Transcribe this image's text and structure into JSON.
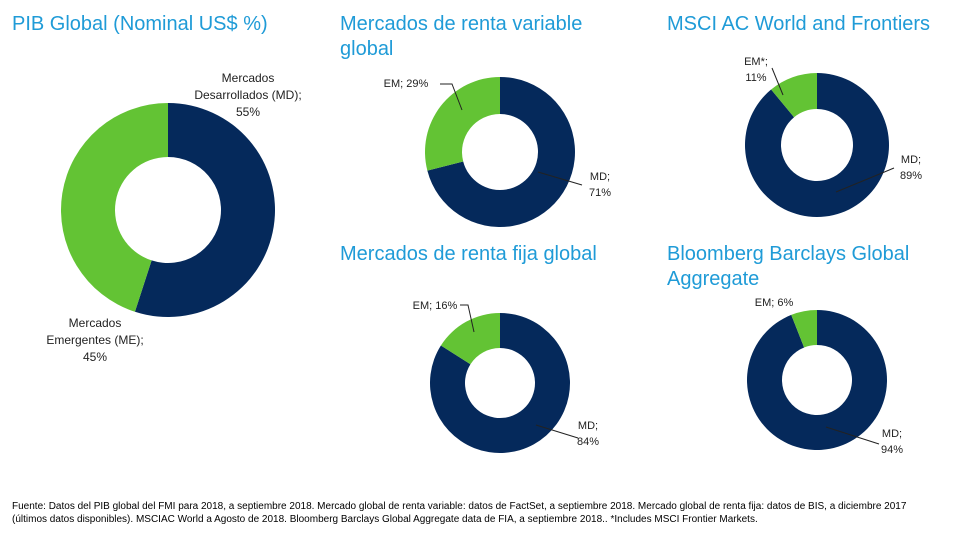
{
  "colors": {
    "md": "#05295b",
    "em": "#63c334",
    "title": "#1f9bd7"
  },
  "chart_data": [
    {
      "type": "pie",
      "variant": "donut",
      "title": "PIB Global (Nominal US$ %)",
      "slices": [
        {
          "key": "md",
          "label_lines": [
            "Mercados",
            "Desarrollados (MD);",
            "55%"
          ],
          "value": 55
        },
        {
          "key": "em",
          "label_lines": [
            "Mercados",
            "Emergentes (ME);",
            "45%"
          ],
          "value": 45
        }
      ]
    },
    {
      "type": "pie",
      "variant": "donut",
      "title_lines": [
        "Mercados de renta variable",
        "global"
      ],
      "slices": [
        {
          "key": "md",
          "label_lines": [
            "MD;",
            "71%"
          ],
          "value": 71
        },
        {
          "key": "em",
          "label_lines": [
            "EM; 29%"
          ],
          "value": 29
        }
      ]
    },
    {
      "type": "pie",
      "variant": "donut",
      "title": "MSCI AC World and Frontiers",
      "slices": [
        {
          "key": "md",
          "label_lines": [
            "MD;",
            "89%"
          ],
          "value": 89
        },
        {
          "key": "em",
          "label_lines": [
            "EM*;",
            "11%"
          ],
          "value": 11
        }
      ]
    },
    {
      "type": "pie",
      "variant": "donut",
      "title": "Mercados de renta fija global",
      "slices": [
        {
          "key": "md",
          "label_lines": [
            "MD;",
            "84%"
          ],
          "value": 84
        },
        {
          "key": "em",
          "label_lines": [
            "EM; 16%"
          ],
          "value": 16
        }
      ]
    },
    {
      "type": "pie",
      "variant": "donut",
      "title_lines": [
        "Bloomberg Barclays Global",
        "Aggregate"
      ],
      "slices": [
        {
          "key": "md",
          "label_lines": [
            "MD;",
            "94%"
          ],
          "value": 94
        },
        {
          "key": "em",
          "label_lines": [
            "EM; 6%"
          ],
          "value": 6
        }
      ]
    }
  ],
  "footnote": {
    "line1": "Fuente: Datos del PIB global del FMI para 2018, a septiembre 2018. Mercado global de renta variable: datos de FactSet, a septiembre 2018. Mercado global de renta fija: datos de BIS, a diciembre 2017",
    "line2": "(últimos datos disponibles). MSCIAC World a Agosto de 2018. Bloomberg Barclays Global Aggregate data de FIA, a septiembre 2018.. *Includes MSCI Frontier Markets."
  }
}
